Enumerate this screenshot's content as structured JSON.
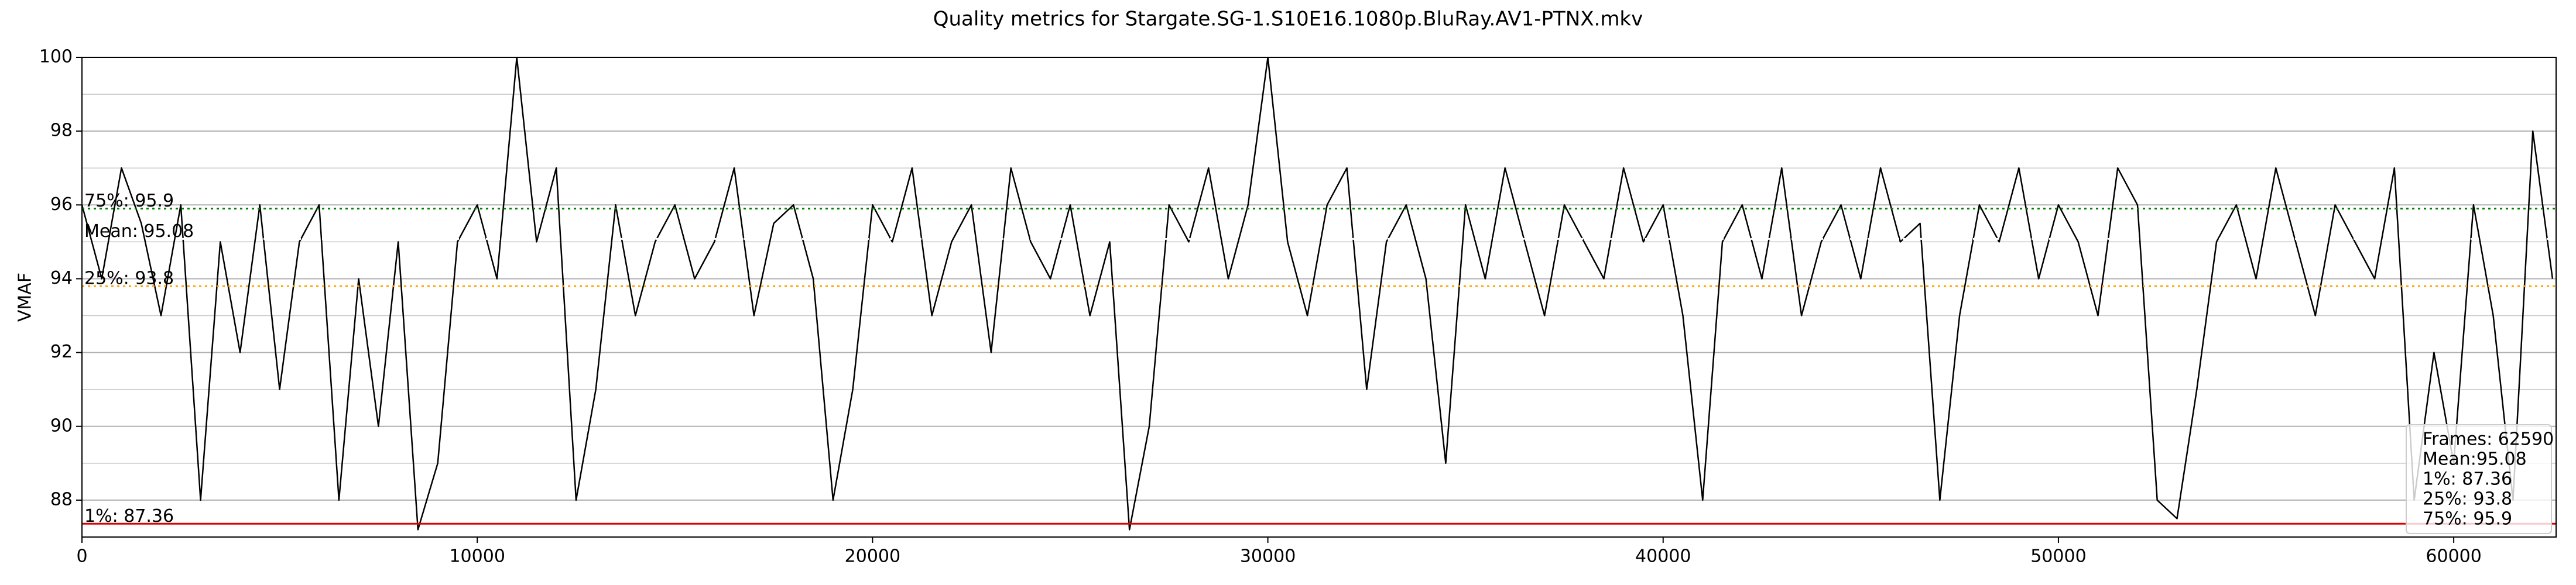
{
  "chart_data": {
    "type": "line",
    "title": "Quality metrics for Stargate.SG-1.S10E16.1080p.BluRay.AV1-PTNX.mkv",
    "y_label": "VMAF",
    "x": [
      0,
      500,
      1000,
      1500,
      2000,
      2500,
      3000,
      3500,
      4000,
      4500,
      5000,
      5500,
      6000,
      6500,
      7000,
      7500,
      8000,
      8500,
      9000,
      9500,
      10000,
      10500,
      11000,
      11500,
      12000,
      12500,
      13000,
      13500,
      14000,
      14500,
      15000,
      15500,
      16000,
      16500,
      17000,
      17500,
      18000,
      18500,
      19000,
      19500,
      20000,
      20500,
      21000,
      21500,
      22000,
      22500,
      23000,
      23500,
      24000,
      24500,
      25000,
      25500,
      26000,
      26500,
      27000,
      27500,
      28000,
      28500,
      29000,
      29500,
      30000,
      30500,
      31000,
      31500,
      32000,
      32500,
      33000,
      33500,
      34000,
      34500,
      35000,
      35500,
      36000,
      36500,
      37000,
      37500,
      38000,
      38500,
      39000,
      39500,
      40000,
      40500,
      41000,
      41500,
      42000,
      42500,
      43000,
      43500,
      44000,
      44500,
      45000,
      45500,
      46000,
      46500,
      47000,
      47500,
      48000,
      48500,
      49000,
      49500,
      50000,
      50500,
      51000,
      51500,
      52000,
      52500,
      53000,
      53500,
      54000,
      54500,
      55000,
      55500,
      56000,
      56500,
      57000,
      57500,
      58000,
      58500,
      59000,
      59500,
      60000,
      60500,
      61000,
      61500,
      62000,
      62500
    ],
    "values": [
      96,
      94,
      97,
      95.5,
      93,
      96,
      88,
      95,
      92,
      96,
      91,
      95,
      96,
      88,
      94,
      90,
      95,
      87.2,
      89,
      95,
      96,
      94,
      100,
      95,
      97,
      88,
      91,
      96,
      93,
      95,
      96,
      94,
      95,
      97,
      93,
      95.5,
      96,
      94,
      88,
      91,
      96,
      95,
      97,
      93,
      95,
      96,
      92,
      97,
      95,
      94,
      96,
      93,
      95,
      87.2,
      90,
      96,
      95,
      97,
      94,
      96,
      100,
      95,
      93,
      96,
      97,
      91,
      95,
      96,
      94,
      89,
      96,
      94,
      97,
      95,
      93,
      96,
      95,
      94,
      97,
      95,
      96,
      93,
      88,
      95,
      96,
      94,
      97,
      93,
      95,
      96,
      94,
      97,
      95,
      95.5,
      88,
      93,
      96,
      95,
      97,
      94,
      96,
      95,
      93,
      97,
      96,
      88,
      87.5,
      91,
      95,
      96,
      94,
      97,
      95,
      93,
      96,
      95,
      94,
      97,
      88,
      92,
      89,
      96,
      93,
      88,
      98,
      94
    ],
    "color": "#000000",
    "xlim": [
      0,
      62590
    ],
    "ylim": [
      87,
      100
    ],
    "xticks": [
      0,
      10000,
      20000,
      30000,
      40000,
      50000,
      60000
    ],
    "yticks": [
      88,
      90,
      92,
      94,
      96,
      98,
      100
    ],
    "y_minor_ticks": [
      87,
      89,
      91,
      93,
      95,
      97,
      99
    ],
    "grid": true,
    "reference_lines": [
      {
        "label": "1%: 87.36",
        "value": 87.36,
        "color": "#e00000",
        "style": "solid"
      },
      {
        "label": "25%: 93.8",
        "value": 93.8,
        "color": "#ffa500",
        "style": "dotted"
      },
      {
        "label": "Mean: 95.08",
        "value": 95.08,
        "color": "#ffffff",
        "style": "dotted"
      },
      {
        "label": "75%: 95.9",
        "value": 95.9,
        "color": "#008000",
        "style": "dotted"
      }
    ],
    "stats_box": [
      "Frames: 62590",
      "Mean:95.08",
      "1%: 87.36",
      "25%: 93.8",
      "75%: 95.9"
    ]
  }
}
